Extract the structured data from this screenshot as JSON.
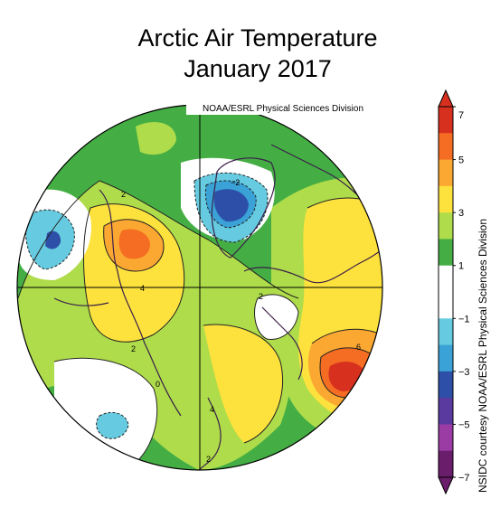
{
  "title_line1": "Arctic Air Temperature",
  "title_line2": "January 2017",
  "map_source_label": "NOAA/ESRL Physical Sciences Division",
  "credit": "NSIDC courtesy NOAA/ESRL Physical Sciences Division",
  "colorbar": {
    "tick_labels": [
      "7",
      "5",
      "3",
      "1",
      "−1",
      "−3",
      "−5",
      "−7"
    ],
    "bins": [
      {
        "color": "#d7301f"
      },
      {
        "color": "#f46d22"
      },
      {
        "color": "#fba832"
      },
      {
        "color": "#fde23d"
      },
      {
        "color": "#aedc4a"
      },
      {
        "color": "#44ae44"
      },
      {
        "color": "#ffffff"
      },
      {
        "color": "#ffffff"
      },
      {
        "color": "#66cbe0"
      },
      {
        "color": "#3aa2d6"
      },
      {
        "color": "#2e4fa8"
      },
      {
        "color": "#5b3aa0"
      },
      {
        "color": "#9a3ca4"
      },
      {
        "color": "#6a1d6a"
      }
    ]
  },
  "contour_labels": [
    "2",
    "−2",
    "4",
    "2",
    "2",
    "0",
    "4",
    "2",
    "6"
  ]
}
